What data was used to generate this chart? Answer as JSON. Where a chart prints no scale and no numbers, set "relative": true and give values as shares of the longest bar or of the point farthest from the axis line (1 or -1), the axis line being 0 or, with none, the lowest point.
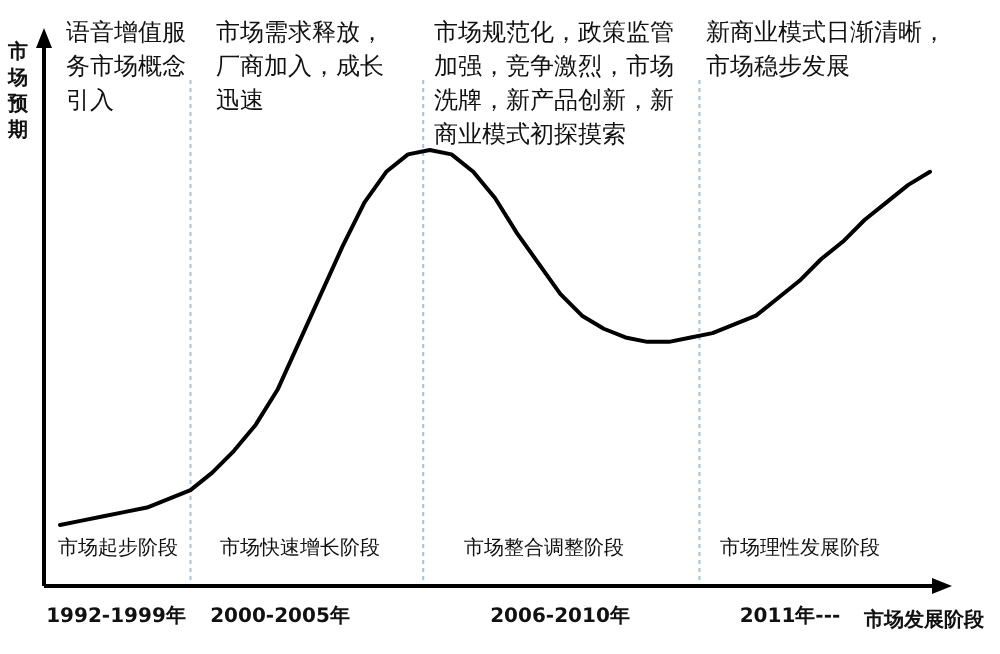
{
  "chart_data": {
    "type": "line",
    "relative": true,
    "ylabel": "市场预期",
    "xlabel": "市场发展阶段",
    "categories": [
      null,
      null,
      null,
      null,
      null,
      null,
      null,
      null,
      null,
      null,
      null,
      null,
      null,
      null,
      null,
      null,
      null,
      null,
      null,
      null,
      null,
      null,
      null,
      null,
      null,
      null,
      null,
      null,
      null,
      null,
      null,
      null,
      null,
      null,
      null,
      null,
      null,
      null,
      null,
      null,
      null
    ],
    "series": [
      {
        "color": "#000000",
        "values": [
          0.14,
          0.15,
          0.16,
          0.17,
          0.18,
          0.2,
          0.22,
          0.26,
          0.31,
          0.37,
          0.45,
          0.56,
          0.67,
          0.78,
          0.88,
          0.95,
          0.99,
          1,
          0.99,
          0.95,
          0.89,
          0.81,
          0.74,
          0.67,
          0.62,
          0.59,
          0.57,
          0.56,
          0.56,
          0.57,
          0.58,
          0.6,
          0.62,
          0.66,
          0.7,
          0.75,
          0.79,
          0.84,
          0.88,
          0.92,
          0.95
        ]
      }
    ],
    "marker": "none",
    "line_style": "solid",
    "annotations": [
      "语音增值服务市场概念引入",
      "市场需求释放，厂商加入，成长迅速",
      "市场规范化，政策监管加强，竞争激烈，市场洗牌，新产品创新，新商业模式初探摸索",
      "新商业模式日渐清晰，市场稳步发展",
      "市场起步阶段",
      "市场快速增长阶段",
      "市场整合调整阶段",
      "市场理性发展阶段",
      "1992-1999年",
      "2000-2005年",
      "2006-2010年",
      "2011年---"
    ]
  }
}
